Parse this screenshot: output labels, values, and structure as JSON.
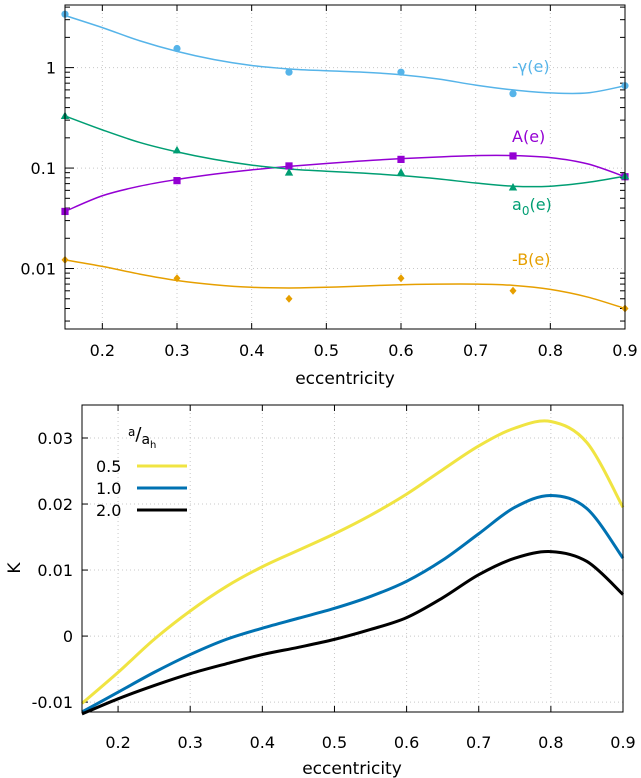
{
  "chart_data": [
    {
      "type": "scatter",
      "xlabel": "eccentricity",
      "ylabel": "",
      "yscale": "log",
      "xlim": [
        0.15,
        0.9
      ],
      "ylim": [
        0.0025,
        4.2
      ],
      "x_ticks": [
        "0.2",
        "0.3",
        "0.4",
        "0.5",
        "0.6",
        "0.7",
        "0.8",
        "0.9"
      ],
      "y_ticks": [
        {
          "value": 0.01,
          "label": "0.01"
        },
        {
          "value": 0.1,
          "label": "0.1"
        },
        {
          "value": 1,
          "label": "1"
        }
      ],
      "grid": true,
      "series": [
        {
          "name": "-γ(e)",
          "color": "#56b4e9",
          "marker": "circle",
          "points": [
            [
              0.15,
              3.4
            ],
            [
              0.3,
              1.55
            ],
            [
              0.45,
              0.9
            ],
            [
              0.6,
              0.9
            ],
            [
              0.75,
              0.55
            ],
            [
              0.9,
              0.66
            ]
          ],
          "fit": [
            [
              0.15,
              3.3
            ],
            [
              0.2,
              2.5
            ],
            [
              0.25,
              1.85
            ],
            [
              0.3,
              1.45
            ],
            [
              0.35,
              1.2
            ],
            [
              0.4,
              1.05
            ],
            [
              0.45,
              0.97
            ],
            [
              0.5,
              0.93
            ],
            [
              0.55,
              0.9
            ],
            [
              0.6,
              0.85
            ],
            [
              0.65,
              0.77
            ],
            [
              0.7,
              0.67
            ],
            [
              0.75,
              0.6
            ],
            [
              0.8,
              0.56
            ],
            [
              0.85,
              0.56
            ],
            [
              0.9,
              0.66
            ]
          ]
        },
        {
          "name": "A(e)",
          "color": "#9400d3",
          "marker": "square",
          "points": [
            [
              0.15,
              0.037
            ],
            [
              0.3,
              0.075
            ],
            [
              0.45,
              0.105
            ],
            [
              0.6,
              0.122
            ],
            [
              0.75,
              0.132
            ],
            [
              0.9,
              0.082
            ]
          ],
          "fit": [
            [
              0.15,
              0.037
            ],
            [
              0.2,
              0.053
            ],
            [
              0.25,
              0.066
            ],
            [
              0.3,
              0.077
            ],
            [
              0.35,
              0.087
            ],
            [
              0.4,
              0.096
            ],
            [
              0.45,
              0.104
            ],
            [
              0.5,
              0.111
            ],
            [
              0.55,
              0.118
            ],
            [
              0.6,
              0.124
            ],
            [
              0.65,
              0.129
            ],
            [
              0.7,
              0.133
            ],
            [
              0.75,
              0.133
            ],
            [
              0.8,
              0.127
            ],
            [
              0.85,
              0.11
            ],
            [
              0.9,
              0.082
            ]
          ]
        },
        {
          "name": "a0(e)",
          "color": "#009e73",
          "marker": "triangle",
          "points": [
            [
              0.15,
              0.33
            ],
            [
              0.3,
              0.15
            ],
            [
              0.45,
              0.09
            ],
            [
              0.6,
              0.09
            ],
            [
              0.75,
              0.064
            ],
            [
              0.9,
              0.083
            ]
          ],
          "fit": [
            [
              0.15,
              0.33
            ],
            [
              0.2,
              0.24
            ],
            [
              0.25,
              0.18
            ],
            [
              0.3,
              0.145
            ],
            [
              0.35,
              0.122
            ],
            [
              0.4,
              0.107
            ],
            [
              0.45,
              0.098
            ],
            [
              0.5,
              0.093
            ],
            [
              0.55,
              0.089
            ],
            [
              0.6,
              0.084
            ],
            [
              0.65,
              0.078
            ],
            [
              0.7,
              0.071
            ],
            [
              0.75,
              0.066
            ],
            [
              0.8,
              0.066
            ],
            [
              0.85,
              0.072
            ],
            [
              0.9,
              0.083
            ]
          ]
        },
        {
          "name": "-B(e)",
          "color": "#e69f00",
          "marker": "diamond",
          "points": [
            [
              0.15,
              0.0122
            ],
            [
              0.3,
              0.008
            ],
            [
              0.45,
              0.005
            ],
            [
              0.6,
              0.008
            ],
            [
              0.75,
              0.006
            ],
            [
              0.9,
              0.004
            ]
          ],
          "fit": [
            [
              0.15,
              0.0122
            ],
            [
              0.2,
              0.0105
            ],
            [
              0.25,
              0.0088
            ],
            [
              0.3,
              0.0076
            ],
            [
              0.35,
              0.0069
            ],
            [
              0.4,
              0.0065
            ],
            [
              0.45,
              0.0064
            ],
            [
              0.5,
              0.0065
            ],
            [
              0.55,
              0.0067
            ],
            [
              0.6,
              0.0069
            ],
            [
              0.65,
              0.007
            ],
            [
              0.7,
              0.007
            ],
            [
              0.75,
              0.0068
            ],
            [
              0.8,
              0.0062
            ],
            [
              0.85,
              0.0052
            ],
            [
              0.9,
              0.004
            ]
          ]
        }
      ]
    },
    {
      "type": "line",
      "xlabel": "eccentricity",
      "ylabel": "K",
      "xlim": [
        0.15,
        0.9
      ],
      "ylim": [
        -0.0115,
        0.035
      ],
      "x_ticks": [
        "0.2",
        "0.3",
        "0.4",
        "0.5",
        "0.6",
        "0.7",
        "0.8",
        "0.9"
      ],
      "y_ticks": [
        {
          "value": -0.01,
          "label": "-0.01"
        },
        {
          "value": 0,
          "label": "0"
        },
        {
          "value": 0.01,
          "label": "0.01"
        },
        {
          "value": 0.02,
          "label": "0.02"
        },
        {
          "value": 0.03,
          "label": "0.03"
        }
      ],
      "grid": true,
      "legend": {
        "title_main": "a",
        "title_den": "a",
        "title_den_sub": "h",
        "placement": "top-left"
      },
      "series": [
        {
          "name": "0.5",
          "color": "#f0e442",
          "x": [
            0.15,
            0.2,
            0.25,
            0.3,
            0.35,
            0.4,
            0.45,
            0.5,
            0.55,
            0.6,
            0.65,
            0.7,
            0.75,
            0.8,
            0.85,
            0.9
          ],
          "values": [
            -0.0102,
            -0.0055,
            -0.0005,
            0.0038,
            0.0075,
            0.0105,
            0.013,
            0.0155,
            0.0183,
            0.0215,
            0.0252,
            0.0288,
            0.0315,
            0.0325,
            0.0293,
            0.0195
          ]
        },
        {
          "name": "1.0",
          "color": "#0072b2",
          "x": [
            0.15,
            0.2,
            0.25,
            0.3,
            0.35,
            0.4,
            0.45,
            0.5,
            0.55,
            0.6,
            0.65,
            0.7,
            0.75,
            0.8,
            0.85,
            0.9
          ],
          "values": [
            -0.0115,
            -0.0085,
            -0.0055,
            -0.0028,
            -0.0005,
            0.0012,
            0.0027,
            0.0042,
            0.006,
            0.0083,
            0.0115,
            0.0155,
            0.0195,
            0.0213,
            0.0193,
            0.0118
          ]
        },
        {
          "name": "2.0",
          "color": "#000000",
          "x": [
            0.15,
            0.2,
            0.25,
            0.3,
            0.35,
            0.4,
            0.45,
            0.5,
            0.55,
            0.6,
            0.65,
            0.7,
            0.75,
            0.8,
            0.85,
            0.9
          ],
          "values": [
            -0.0118,
            -0.0095,
            -0.0075,
            -0.0057,
            -0.0042,
            -0.0028,
            -0.0017,
            -0.0005,
            0.001,
            0.0028,
            0.0058,
            0.0093,
            0.0118,
            0.0128,
            0.0113,
            0.0063
          ]
        }
      ]
    }
  ]
}
